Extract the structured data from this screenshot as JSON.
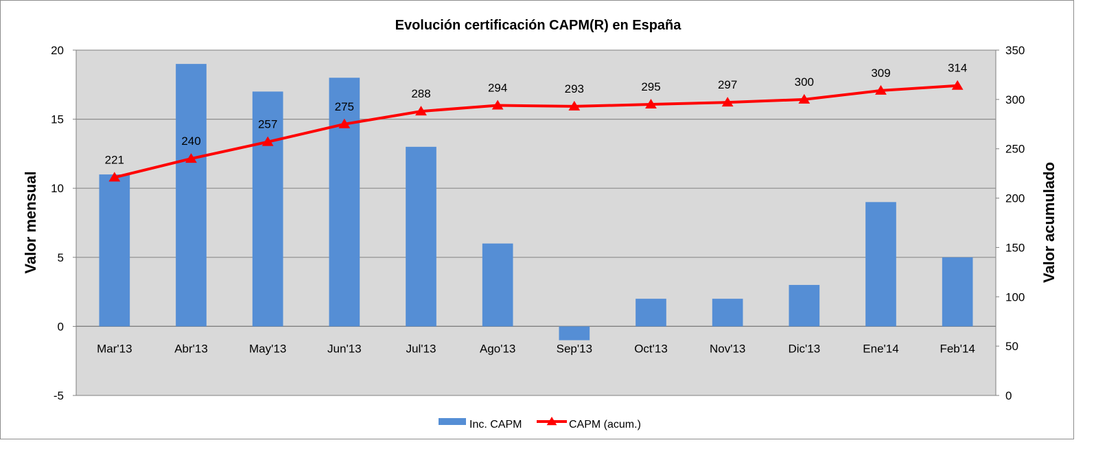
{
  "chart_data": {
    "type": "bar",
    "title": "Evolución certificación CAPM(R) en España",
    "categories": [
      "Mar'13",
      "Abr'13",
      "May'13",
      "Jun'13",
      "Jul'13",
      "Ago'13",
      "Sep'13",
      "Oct'13",
      "Nov'13",
      "Dic'13",
      "Ene'14",
      "Feb'14"
    ],
    "series": [
      {
        "name": "Inc. CAPM",
        "type": "bar",
        "axis": "left",
        "color": "#558ed5",
        "values": [
          11,
          19,
          17,
          18,
          13,
          6,
          -1,
          2,
          2,
          3,
          9,
          5
        ]
      },
      {
        "name": "CAPM (acum.)",
        "type": "line",
        "axis": "right",
        "color": "#ff0000",
        "marker": "triangle",
        "values": [
          221,
          240,
          257,
          275,
          288,
          294,
          293,
          295,
          297,
          300,
          309,
          314
        ],
        "data_labels": [
          "221",
          "240",
          "257",
          "275",
          "288",
          "294",
          "293",
          "295",
          "297",
          "300",
          "309",
          "314"
        ]
      }
    ],
    "ylabel": "Valor mensual",
    "ylim": [
      -5,
      20
    ],
    "yticks": [
      "20",
      "15",
      "10",
      "5",
      "0",
      "-5"
    ],
    "y2label": "Valor acumulado",
    "y2lim": [
      0,
      350
    ],
    "y2ticks": [
      "350",
      "300",
      "250",
      "200",
      "150",
      "100",
      "50",
      "0"
    ],
    "grid": true,
    "plot_background": "#d9d9d9",
    "legend_position": "bottom"
  }
}
